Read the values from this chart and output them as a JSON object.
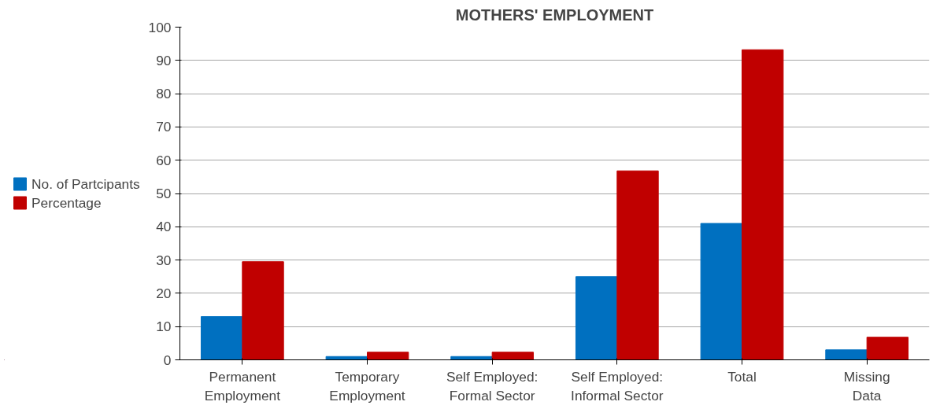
{
  "chart_data": {
    "type": "bar",
    "title": "MOTHERS' EMPLOYMENT",
    "categories": [
      "Permanent Employment",
      "Temporary Employment",
      "Self Employed: Formal Sector",
      "Self Employed: Informal Sector",
      "Total",
      "Missing Data"
    ],
    "series": [
      {
        "name": "No. of Partcipants",
        "color": "#0070c0",
        "values": [
          13,
          1,
          1,
          25,
          41,
          3
        ]
      },
      {
        "name": "Percentage",
        "color": "#c00000",
        "values": [
          29.5,
          2.3,
          2.3,
          56.8,
          93.2,
          6.8
        ]
      }
    ],
    "ylim": [
      0,
      100
    ],
    "yticks": [
      0,
      10,
      20,
      30,
      40,
      50,
      60,
      70,
      80,
      90,
      100
    ],
    "grid": "y",
    "legend": "left"
  }
}
